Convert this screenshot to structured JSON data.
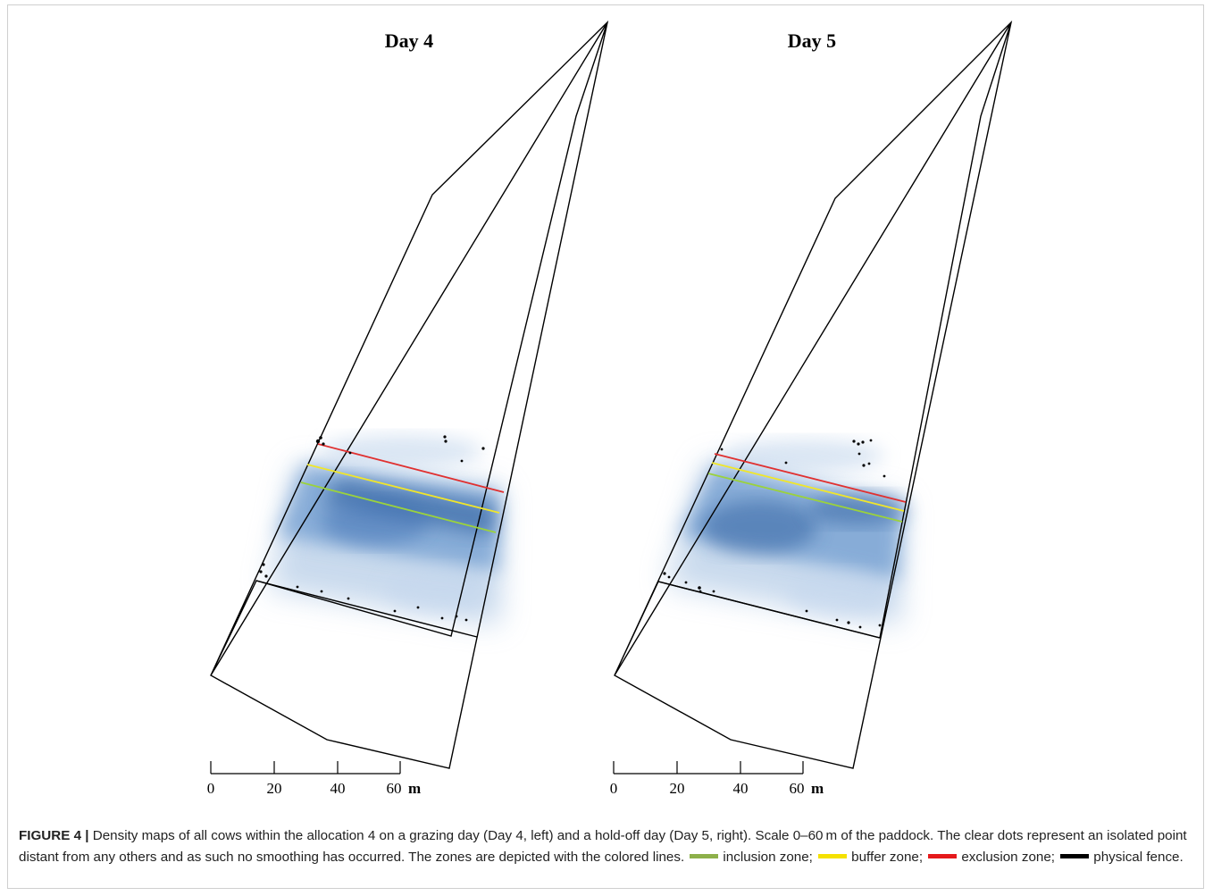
{
  "panels": [
    {
      "title": "Day 4"
    },
    {
      "title": "Day 5"
    }
  ],
  "scale_bar": {
    "ticks": [
      "0",
      "20",
      "40",
      "60"
    ],
    "unit": "m"
  },
  "caption": {
    "label": "FIGURE 4 |",
    "text": " Density maps of all cows within the allocation 4 on a grazing day (Day 4, left) and a hold-off day (Day 5, right). Scale 0–60 m of the paddock. The clear dots represent an isolated point distant from any others and as such no smoothing has occurred. The zones are depicted with the colored lines.",
    "legend": [
      {
        "label": "inclusion zone;",
        "color": "#8db04a"
      },
      {
        "label": "buffer zone;",
        "color": "#f5e100"
      },
      {
        "label": "exclusion zone;",
        "color": "#e5191b"
      },
      {
        "label": "physical fence.",
        "color": "#000000"
      }
    ]
  },
  "colors": {
    "density": "#2f6ab0",
    "inclusion_line": "#9bd23c",
    "buffer_line": "#f0e62a",
    "exclusion_line": "#e03030",
    "fence_line": "#000000"
  }
}
